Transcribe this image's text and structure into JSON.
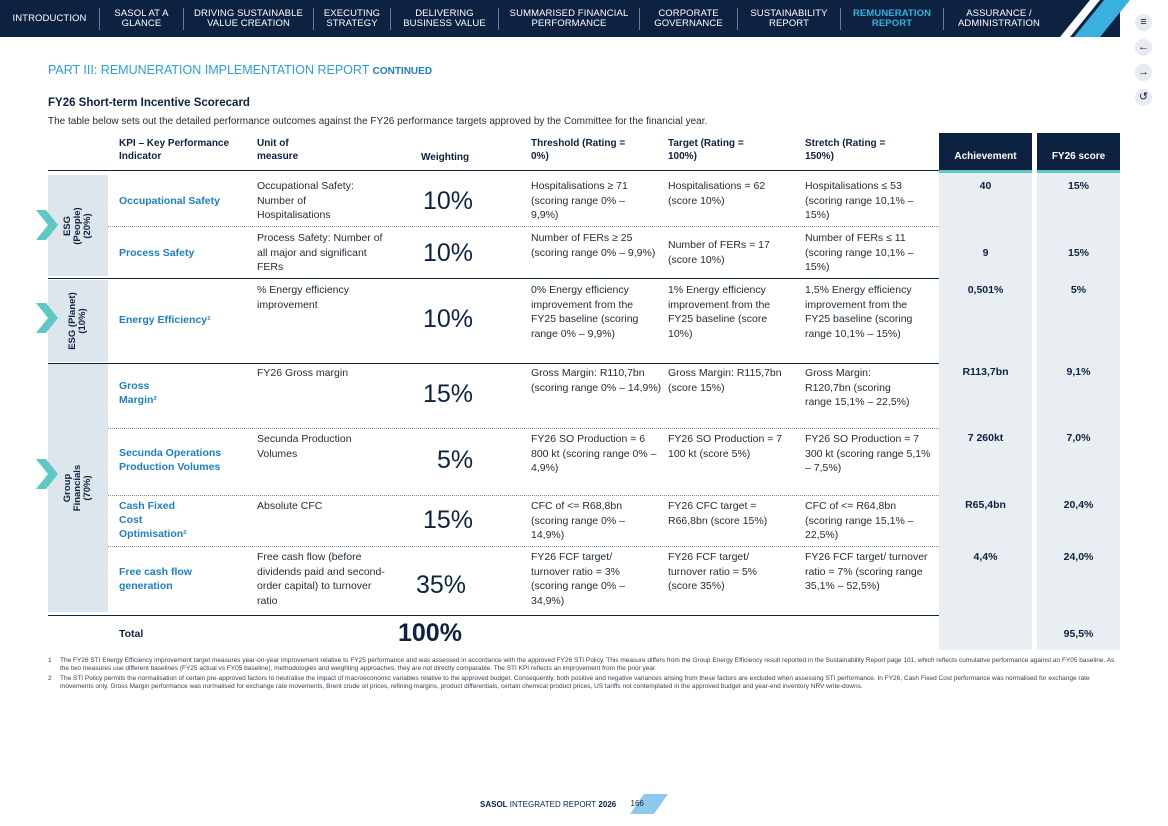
{
  "nav": {
    "items": [
      {
        "label": "INTRODUCTION"
      },
      {
        "label": "SASOL AT A GLANCE"
      },
      {
        "label": "DRIVING SUSTAINABLE VALUE CREATION"
      },
      {
        "label": "EXECUTING STRATEGY"
      },
      {
        "label": "DELIVERING BUSINESS VALUE"
      },
      {
        "label": "SUMMARISED FINANCIAL PERFORMANCE"
      },
      {
        "label": "CORPORATE GOVERNANCE"
      },
      {
        "label": "SUSTAINABILITY REPORT"
      },
      {
        "label": "REMUNERATION REPORT"
      },
      {
        "label": "ASSURANCE / ADMINISTRATION"
      }
    ],
    "active_index": 8
  },
  "side_icons": [
    "menu-icon",
    "back-icon",
    "forward-icon",
    "return-icon"
  ],
  "part_title": "PART III: REMUNERATION IMPLEMENTATION REPORT",
  "part_title_suffix": "CONTINUED",
  "section_title": "FY26 Short-term Incentive Scorecard",
  "section_intro": "The table below sets out the detailed performance outcomes against the FY26 performance targets approved by the Committee for the financial year.",
  "table": {
    "headers": {
      "kpi": "KPI – Key Performance Indicator",
      "unit": "Unit of measure",
      "weighting": "Weighting",
      "threshold": "Threshold (Rating = 0%)",
      "target": "Target (Rating = 100%)",
      "stretch": "Stretch (Rating = 150%)",
      "achievement": "Achievement",
      "score": "FY26 score"
    },
    "groups": {
      "people": "ESG (People) (20%)",
      "planet": "ESG (Planet) (10%)",
      "financials": "Group Financials (70%)"
    },
    "rows": {
      "occ": {
        "kpi": "Occupational Safety",
        "unit": "Occupational Safety: Number of Hospitalisations",
        "weighting": "10%",
        "threshold": "Hospitalisations ≥ 71 (scoring range 0% – 9,9%)",
        "target": "Hospitalisations = 62 (score 10%)",
        "stretch": "Hospitalisations ≤ 53 (scoring range 10,1% – 15%)",
        "achievement": "40",
        "score": "15%"
      },
      "proc": {
        "kpi": "Process Safety",
        "unit": "Process Safety: Number of all major and significant FERs",
        "weighting": "10%",
        "threshold": "Number of FERs ≥ 25 (scoring range 0% – 9,9%)",
        "target": "Number of FERs = 17 (score 10%)",
        "stretch": "Number of FERs ≤ 11 (scoring range 10,1% – 15%)",
        "achievement": "9",
        "score": "15%"
      },
      "energy": {
        "kpi": "Energy Efficiency¹",
        "unit": "% Energy efficiency improvement",
        "weighting": "10%",
        "threshold": "0% Energy efficiency improvement from the FY25 baseline (scoring range 0% – 9,9%)",
        "target": "1% Energy efficiency improvement from the FY25 baseline (score 10%)",
        "stretch": "1,5% Energy efficiency improvement from the FY25 baseline (scoring range 10,1% – 15%)",
        "achievement": "0,501%",
        "score": "5%"
      },
      "gross": {
        "kpi": "Gross Margin²",
        "unit": "FY26 Gross margin",
        "weighting": "15%",
        "threshold": "Gross Margin: R110,7bn (scoring range 0% – 14,9%)",
        "target": "Gross Margin: R115,7bn (score 15%)",
        "stretch": "Gross Margin: R120,7bn (scoring range 15,1% – 22,5%)",
        "achievement": "R113,7bn",
        "score": "9,1%"
      },
      "secunda": {
        "kpi": "Secunda Operations Production Volumes",
        "unit": "Secunda Production Volumes",
        "weighting": "5%",
        "threshold": "FY26 SO Production = 6 800 kt (scoring range 0% – 4,9%)",
        "target": "FY26 SO Production = 7 100 kt (score 5%)",
        "stretch": "FY26 SO Production = 7 300 kt (scoring range 5,1% – 7,5%)",
        "achievement": "7 260kt",
        "score": "7,0%"
      },
      "cash": {
        "kpi": "Cash Fixed Cost Optimisation²",
        "unit": "Absolute CFC",
        "weighting": "15%",
        "threshold": "CFC of <= R68,8bn (scoring range 0% – 14,9%)",
        "target": "FY26 CFC target = R66,8bn (score 15%)",
        "stretch": "CFC of <= R64,8bn (scoring range 15,1% – 22,5%)",
        "achievement": "R65,4bn",
        "score": "20,4%"
      },
      "fcf": {
        "kpi": "Free cash flow generation",
        "unit": "Free cash flow (before dividends paid and second-order capital) to turnover ratio",
        "weighting": "35%",
        "threshold": "FY26 FCF target/ turnover ratio = 3% (scoring range 0% – 34,9%)",
        "target": "FY26 FCF target/ turnover ratio = 5% (score 35%)",
        "stretch": "FY26 FCF target/ turnover ratio = 7% (scoring range 35,1% – 52,5%)",
        "achievement": "4,4%",
        "score": "24,0%"
      }
    },
    "total": {
      "label": "Total",
      "weighting": "100%",
      "score": "95,5%"
    }
  },
  "notes": [
    {
      "num": "1",
      "text": "The FY26 STI Energy Efficiency improvement target measures year-on-year improvement relative to FY25 performance and was assessed in accordance with the approved FY26 STI Policy. This measure differs from the Group Energy Efficiency result reported in the Sustainability Report page 101, which reflects cumulative performance against an FY05 baseline. As the two measures use different baselines (FY25 actual vs FY05 baseline), methodologies and weighting approaches, they are not directly comparable. The STI KPI reflects an improvement from the prior year."
    },
    {
      "num": "2",
      "text": "The STI Policy permits the normalisation of certain pre-approved factors to neutralise the impact of macroeconomic variables relative to the approved budget. Consequently, both positive and negative variances arising from these factors are excluded when assessing STI performance. In FY26, Cash Fixed Cost performance was normalised for exchange rate movements only. Gross Margin performance was normalised for exchange rate movements, Brent crude oil prices, refining margins, product differentials, certain chemical product prices, US tariffs not contemplated in the approved budget and year-end inventory NRV write-downs."
    }
  ],
  "footer": {
    "brand": "SASOL",
    "report": "INTEGRATED REPORT",
    "year": "2026",
    "page": "166"
  },
  "colors": {
    "navy": "#0d2240",
    "accent_blue": "#1e7fbf",
    "light_blue": "#2a9fd6",
    "teal": "#5ec8c4"
  }
}
